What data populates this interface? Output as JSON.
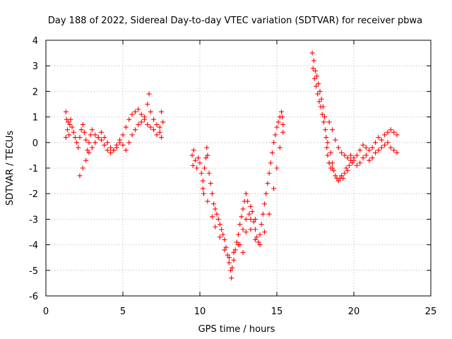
{
  "chart_data": {
    "type": "scatter",
    "title": "Day 188 of 2022, Sidereal Day-to-day VTEC variation (SDTVAR) for receiver pbwa",
    "xlabel": "GPS time / hours",
    "ylabel": "SDTVAR / TECUs",
    "xlim": [
      0,
      25
    ],
    "ylim": [
      -6,
      4
    ],
    "xticks": [
      "0",
      "5",
      "10",
      "15",
      "20",
      "25"
    ],
    "yticks": [
      "4",
      "3",
      "2",
      "1",
      "0",
      "-1",
      "-2",
      "-3",
      "-4",
      "-5",
      "-6"
    ],
    "grid": true,
    "marker": "plus",
    "color": "#ff0000",
    "series": [
      {
        "points": [
          [
            1.3,
            1.2
          ],
          [
            1.3,
            0.2
          ],
          [
            1.35,
            0.9
          ],
          [
            1.4,
            0.5
          ],
          [
            1.45,
            0.8
          ],
          [
            1.5,
            0.3
          ],
          [
            1.55,
            0.7
          ],
          [
            1.6,
            0.9
          ],
          [
            1.7,
            0.6
          ],
          [
            1.8,
            0.4
          ],
          [
            1.9,
            0.2
          ],
          [
            2.0,
            0.0
          ],
          [
            2.1,
            -0.2
          ],
          [
            2.2,
            0.2
          ],
          [
            2.3,
            0.5
          ],
          [
            2.4,
            0.7
          ],
          [
            2.5,
            0.4
          ],
          [
            2.6,
            0.1
          ],
          [
            2.7,
            -0.3
          ],
          [
            2.8,
            0.0
          ],
          [
            2.9,
            0.3
          ],
          [
            3.0,
            0.5
          ],
          [
            3.2,
            0.3
          ],
          [
            3.4,
            0.2
          ],
          [
            3.6,
            0.4
          ],
          [
            3.8,
            0.2
          ],
          [
            4.0,
            0.0
          ],
          [
            4.2,
            -0.2
          ],
          [
            4.4,
            -0.3
          ],
          [
            4.6,
            -0.2
          ],
          [
            4.8,
            0.0
          ],
          [
            5.0,
            0.3
          ],
          [
            5.2,
            0.6
          ],
          [
            5.4,
            0.9
          ],
          [
            5.6,
            1.1
          ],
          [
            5.8,
            1.2
          ],
          [
            6.0,
            1.3
          ],
          [
            6.2,
            1.1
          ],
          [
            6.4,
            1.0
          ],
          [
            6.6,
            1.5
          ],
          [
            6.7,
            1.9
          ],
          [
            6.8,
            1.2
          ],
          [
            7.0,
            0.9
          ],
          [
            7.2,
            0.7
          ],
          [
            7.4,
            0.6
          ],
          [
            7.5,
            1.2
          ],
          [
            7.6,
            0.8
          ],
          [
            2.2,
            -1.3
          ],
          [
            2.4,
            -1.0
          ],
          [
            2.6,
            -0.7
          ],
          [
            2.8,
            -0.4
          ],
          [
            3.0,
            -0.2
          ],
          [
            3.2,
            0.0
          ],
          [
            3.4,
            0.2
          ],
          [
            3.6,
            0.1
          ],
          [
            3.8,
            -0.1
          ],
          [
            4.0,
            -0.3
          ],
          [
            4.2,
            -0.4
          ],
          [
            4.4,
            -0.3
          ],
          [
            4.6,
            -0.1
          ],
          [
            4.8,
            0.1
          ],
          [
            5.0,
            -0.1
          ],
          [
            5.2,
            -0.3
          ],
          [
            5.4,
            0.0
          ],
          [
            5.6,
            0.3
          ],
          [
            5.8,
            0.5
          ],
          [
            6.0,
            0.7
          ],
          [
            6.2,
            0.8
          ],
          [
            6.4,
            0.9
          ],
          [
            6.6,
            0.7
          ],
          [
            6.8,
            0.6
          ],
          [
            7.0,
            0.5
          ],
          [
            7.2,
            0.3
          ],
          [
            7.4,
            0.4
          ],
          [
            7.5,
            0.2
          ]
        ]
      },
      {
        "points": [
          [
            9.5,
            -0.5
          ],
          [
            9.55,
            -0.9
          ],
          [
            9.6,
            -0.3
          ],
          [
            9.7,
            -0.7
          ],
          [
            9.8,
            -1.0
          ],
          [
            9.9,
            -0.6
          ],
          [
            10.0,
            -0.8
          ],
          [
            10.1,
            -1.2
          ],
          [
            10.2,
            -1.5
          ],
          [
            10.25,
            -2.0
          ],
          [
            10.3,
            -1.0
          ],
          [
            10.4,
            -0.6
          ],
          [
            10.45,
            -0.2
          ],
          [
            10.5,
            -0.5
          ],
          [
            10.6,
            -1.2
          ],
          [
            10.7,
            -1.6
          ],
          [
            10.8,
            -2.0
          ],
          [
            10.9,
            -2.4
          ],
          [
            11.0,
            -2.6
          ],
          [
            11.1,
            -2.8
          ],
          [
            11.2,
            -3.0
          ],
          [
            11.3,
            -3.2
          ],
          [
            11.4,
            -3.4
          ],
          [
            11.5,
            -3.6
          ],
          [
            11.6,
            -3.8
          ],
          [
            11.7,
            -4.1
          ],
          [
            11.8,
            -4.4
          ],
          [
            11.9,
            -4.7
          ],
          [
            12.0,
            -5.0
          ],
          [
            12.05,
            -5.3
          ],
          [
            12.1,
            -4.9
          ],
          [
            12.2,
            -4.6
          ],
          [
            12.3,
            -4.2
          ],
          [
            12.4,
            -3.9
          ],
          [
            12.5,
            -3.6
          ],
          [
            12.6,
            -3.2
          ],
          [
            12.7,
            -2.9
          ],
          [
            12.8,
            -2.6
          ],
          [
            12.9,
            -2.3
          ],
          [
            13.0,
            -2.0
          ],
          [
            13.1,
            -2.3
          ],
          [
            13.2,
            -2.8
          ],
          [
            13.3,
            -3.0
          ],
          [
            13.4,
            -2.7
          ],
          [
            13.5,
            -3.1
          ],
          [
            13.6,
            -3.4
          ],
          [
            13.7,
            -3.7
          ],
          [
            13.8,
            -3.9
          ],
          [
            13.9,
            -3.6
          ],
          [
            14.0,
            -3.2
          ],
          [
            14.1,
            -2.8
          ],
          [
            14.2,
            -2.4
          ],
          [
            14.3,
            -2.0
          ],
          [
            14.4,
            -1.6
          ],
          [
            14.5,
            -1.2
          ],
          [
            14.6,
            -0.8
          ],
          [
            14.7,
            -0.4
          ],
          [
            14.8,
            0.0
          ],
          [
            14.9,
            0.3
          ],
          [
            15.0,
            0.6
          ],
          [
            15.1,
            0.8
          ],
          [
            15.2,
            1.0
          ],
          [
            15.3,
            1.2
          ],
          [
            15.35,
            1.0
          ],
          [
            15.4,
            0.7
          ],
          [
            10.2,
            -1.8
          ],
          [
            10.5,
            -2.3
          ],
          [
            10.8,
            -2.9
          ],
          [
            11.0,
            -3.3
          ],
          [
            11.3,
            -3.7
          ],
          [
            11.6,
            -4.2
          ],
          [
            11.9,
            -4.5
          ],
          [
            12.2,
            -4.3
          ],
          [
            12.5,
            -4.0
          ],
          [
            12.8,
            -3.4
          ],
          [
            13.0,
            -3.0
          ],
          [
            13.3,
            -3.4
          ],
          [
            13.6,
            -3.8
          ],
          [
            13.9,
            -4.0
          ],
          [
            14.2,
            -3.5
          ],
          [
            14.5,
            -2.8
          ],
          [
            14.8,
            -1.8
          ],
          [
            15.0,
            -1.0
          ],
          [
            15.2,
            -0.2
          ],
          [
            15.4,
            0.4
          ],
          [
            12.6,
            -4.0
          ],
          [
            12.8,
            -4.3
          ],
          [
            13.0,
            -3.5
          ],
          [
            13.3,
            -2.5
          ],
          [
            13.6,
            -3.0
          ]
        ]
      },
      {
        "points": [
          [
            17.3,
            3.5
          ],
          [
            17.35,
            2.9
          ],
          [
            17.4,
            3.2
          ],
          [
            17.45,
            2.5
          ],
          [
            17.5,
            2.8
          ],
          [
            17.55,
            2.2
          ],
          [
            17.6,
            2.6
          ],
          [
            17.65,
            1.9
          ],
          [
            17.7,
            2.3
          ],
          [
            17.75,
            1.6
          ],
          [
            17.8,
            2.0
          ],
          [
            17.85,
            1.4
          ],
          [
            17.9,
            1.7
          ],
          [
            17.95,
            1.1
          ],
          [
            18.0,
            1.4
          ],
          [
            18.05,
            0.8
          ],
          [
            18.1,
            1.0
          ],
          [
            18.15,
            0.5
          ],
          [
            18.2,
            0.2
          ],
          [
            18.25,
            -0.2
          ],
          [
            18.3,
            -0.5
          ],
          [
            18.4,
            -0.8
          ],
          [
            18.5,
            -1.0
          ],
          [
            18.6,
            -0.8
          ],
          [
            18.7,
            -1.1
          ],
          [
            18.8,
            -1.3
          ],
          [
            18.9,
            -1.4
          ],
          [
            19.0,
            -1.5
          ],
          [
            19.1,
            -1.4
          ],
          [
            19.2,
            -1.3
          ],
          [
            19.3,
            -1.4
          ],
          [
            19.4,
            -1.2
          ],
          [
            19.5,
            -1.0
          ],
          [
            19.6,
            -1.1
          ],
          [
            19.7,
            -0.9
          ],
          [
            19.8,
            -0.7
          ],
          [
            19.9,
            -0.8
          ],
          [
            20.0,
            -0.6
          ],
          [
            20.2,
            -0.5
          ],
          [
            20.4,
            -0.3
          ],
          [
            20.6,
            -0.1
          ],
          [
            20.8,
            -0.2
          ],
          [
            21.0,
            -0.3
          ],
          [
            21.2,
            -0.2
          ],
          [
            21.4,
            0.0
          ],
          [
            21.6,
            0.2
          ],
          [
            21.8,
            0.1
          ],
          [
            22.0,
            0.3
          ],
          [
            22.2,
            0.4
          ],
          [
            22.4,
            0.5
          ],
          [
            22.6,
            0.4
          ],
          [
            22.8,
            0.3
          ],
          [
            18.4,
            0.8
          ],
          [
            18.6,
            0.5
          ],
          [
            18.8,
            0.1
          ],
          [
            19.0,
            -0.2
          ],
          [
            19.2,
            -0.4
          ],
          [
            19.4,
            -0.5
          ],
          [
            19.6,
            -0.6
          ],
          [
            19.8,
            -0.5
          ],
          [
            20.0,
            -0.7
          ],
          [
            20.2,
            -0.9
          ],
          [
            20.4,
            -0.8
          ],
          [
            20.6,
            -0.6
          ],
          [
            20.8,
            -0.5
          ],
          [
            21.0,
            -0.7
          ],
          [
            21.2,
            -0.6
          ],
          [
            21.4,
            -0.4
          ],
          [
            21.6,
            -0.3
          ],
          [
            21.8,
            -0.2
          ],
          [
            22.0,
            -0.1
          ],
          [
            22.2,
            0.0
          ],
          [
            22.4,
            -0.2
          ],
          [
            22.6,
            -0.3
          ],
          [
            22.8,
            -0.4
          ],
          [
            18.4,
            -0.8
          ],
          [
            18.6,
            -1.0
          ],
          [
            18.3,
            0.0
          ],
          [
            18.5,
            -0.4
          ]
        ]
      }
    ]
  }
}
